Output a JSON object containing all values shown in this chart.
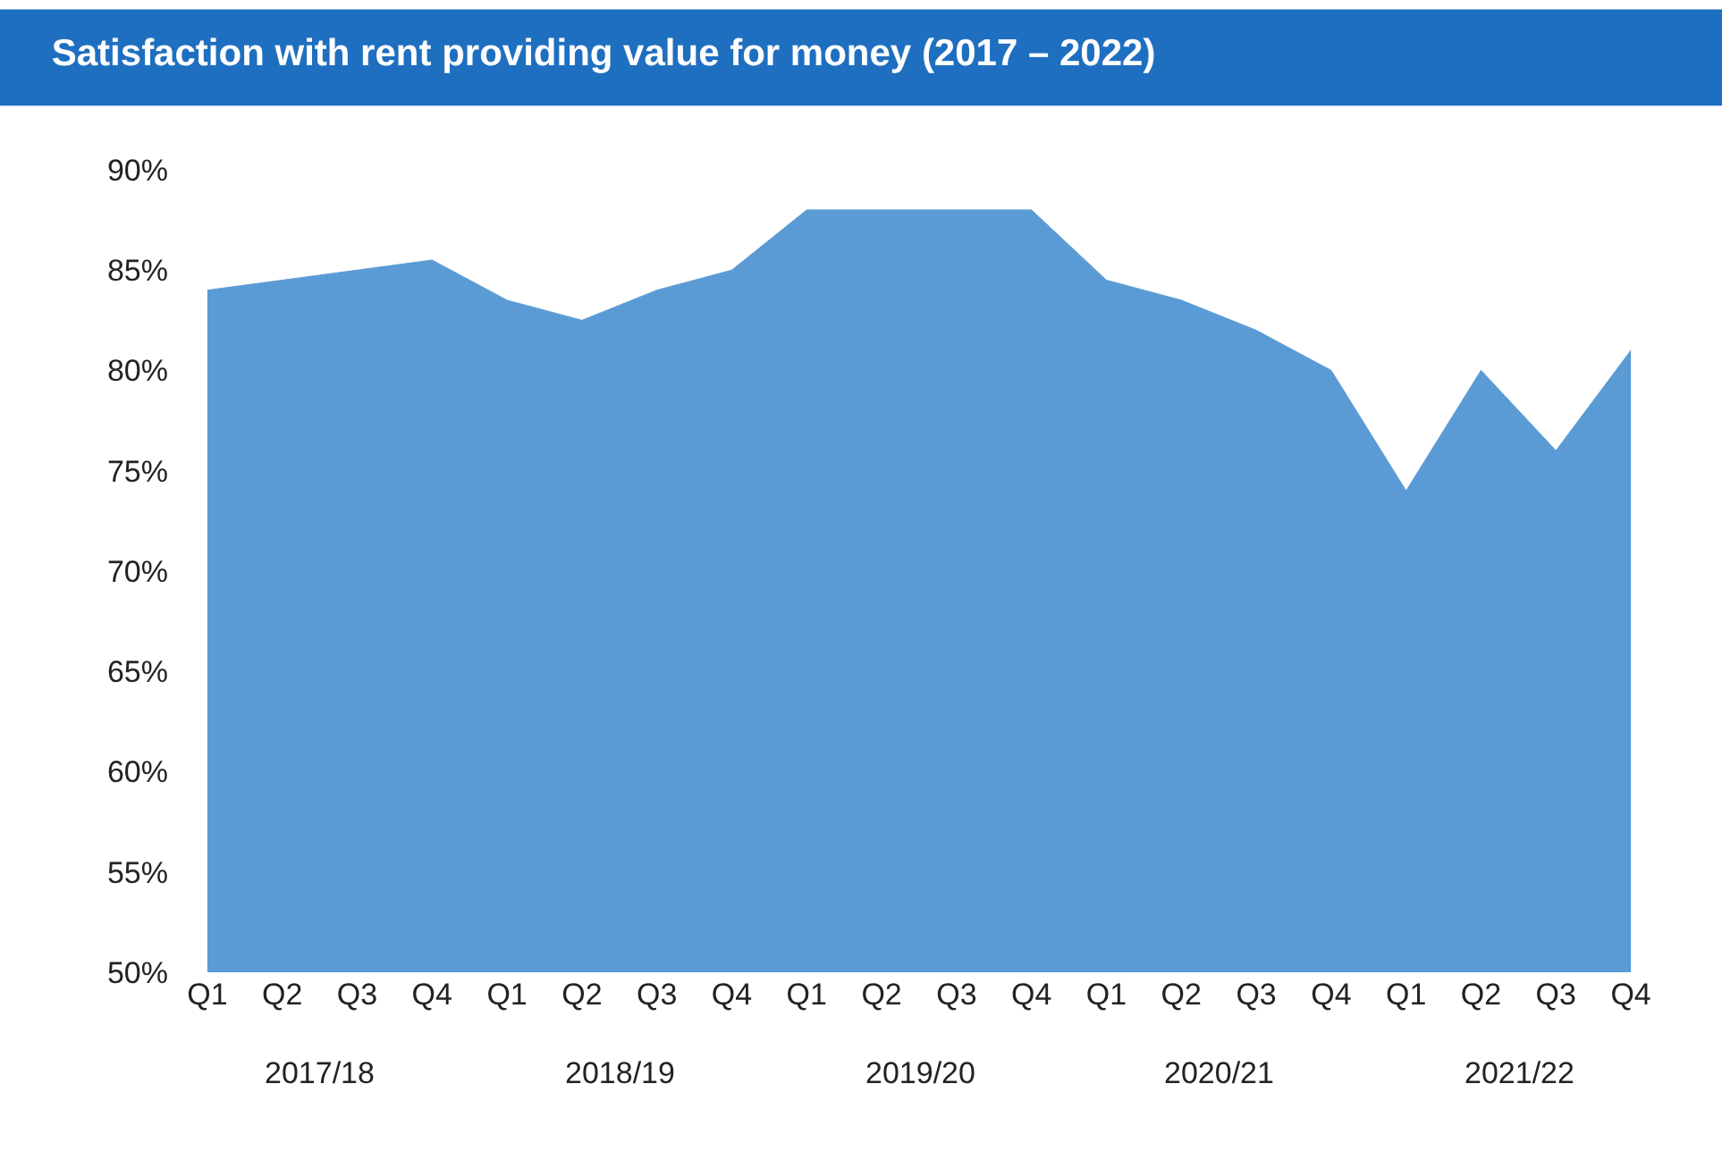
{
  "chart_data": {
    "type": "area",
    "title": "Satisfaction with rent providing value for money (2017 – 2022)",
    "categories": [
      "Q1",
      "Q2",
      "Q3",
      "Q4",
      "Q1",
      "Q2",
      "Q3",
      "Q4",
      "Q1",
      "Q2",
      "Q3",
      "Q4",
      "Q1",
      "Q2",
      "Q3",
      "Q4",
      "Q1",
      "Q2",
      "Q3",
      "Q4"
    ],
    "series": [
      {
        "color": "#5b9bd5",
        "values": [
          84,
          84.5,
          85,
          85.5,
          83.5,
          82.5,
          84,
          85,
          88,
          88,
          88,
          88,
          84.5,
          83.5,
          82,
          80,
          74,
          80,
          76,
          81
        ]
      }
    ],
    "annotations": [
      "2017/18",
      "2018/19",
      "2019/20",
      "2020/21",
      "2021/22"
    ],
    "ylim": [
      50,
      90
    ],
    "yticks": [
      {
        "value": 50,
        "label": "50%"
      },
      {
        "value": 55,
        "label": "55%"
      },
      {
        "value": 60,
        "label": "60%"
      },
      {
        "value": 65,
        "label": "65%"
      },
      {
        "value": 70,
        "label": "70%"
      },
      {
        "value": 75,
        "label": "75%"
      },
      {
        "value": 80,
        "label": "80%"
      },
      {
        "value": 85,
        "label": "85%"
      },
      {
        "value": 90,
        "label": "90%"
      }
    ]
  }
}
